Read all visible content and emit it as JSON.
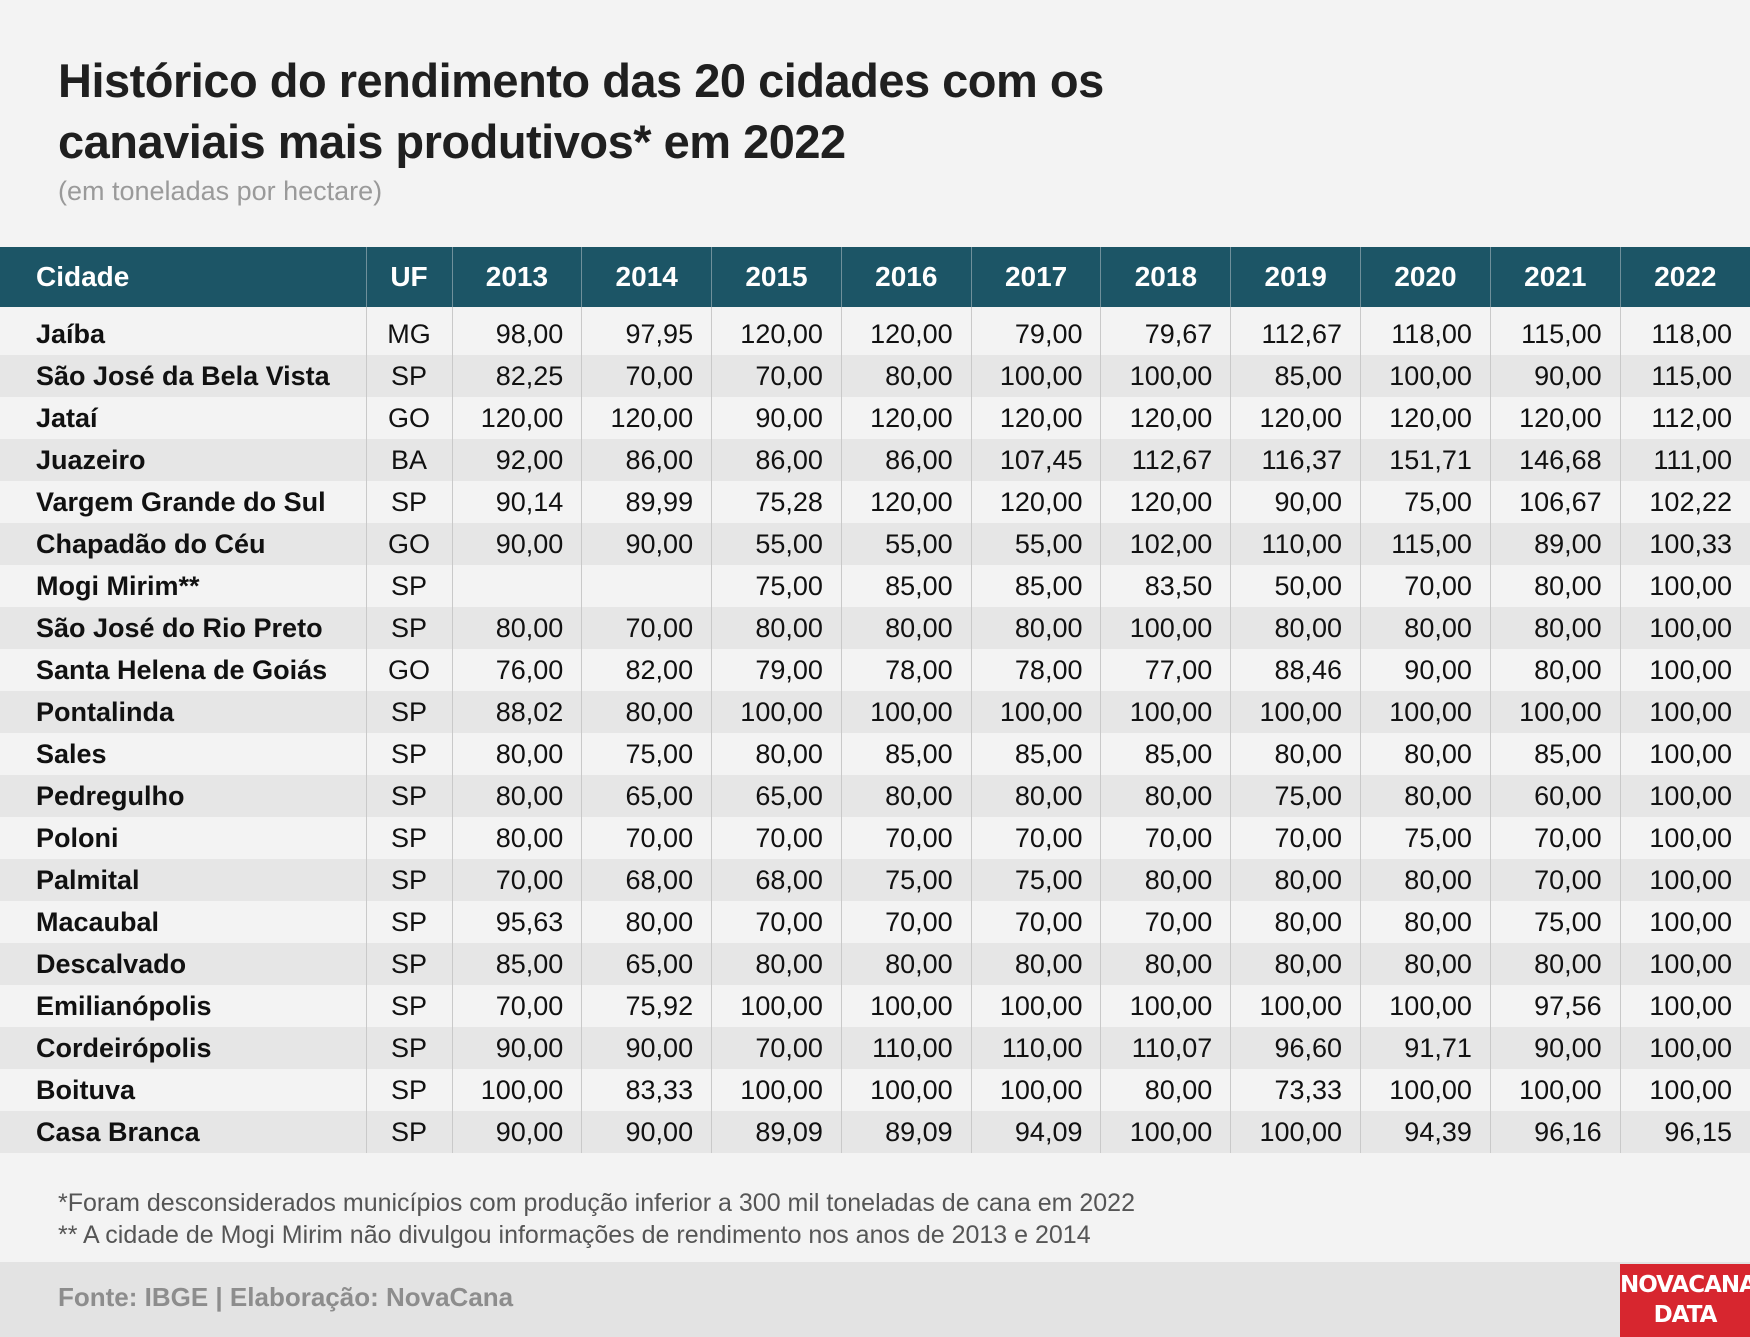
{
  "header": {
    "title_line1": "Histórico do rendimento das 20 cidades com os",
    "title_line2": "canaviais mais produtivos* em 2022",
    "subtitle": "(em toneladas por hectare)"
  },
  "chart_data": {
    "type": "table",
    "columns": [
      "Cidade",
      "UF",
      "2013",
      "2014",
      "2015",
      "2016",
      "2017",
      "2018",
      "2019",
      "2020",
      "2021",
      "2022"
    ],
    "rows": [
      [
        "Jaíba",
        "MG",
        "98,00",
        "97,95",
        "120,00",
        "120,00",
        "79,00",
        "79,67",
        "112,67",
        "118,00",
        "115,00",
        "118,00"
      ],
      [
        "São José da Bela Vista",
        "SP",
        "82,25",
        "70,00",
        "70,00",
        "80,00",
        "100,00",
        "100,00",
        "85,00",
        "100,00",
        "90,00",
        "115,00"
      ],
      [
        "Jataí",
        "GO",
        "120,00",
        "120,00",
        "90,00",
        "120,00",
        "120,00",
        "120,00",
        "120,00",
        "120,00",
        "120,00",
        "112,00"
      ],
      [
        "Juazeiro",
        "BA",
        "92,00",
        "86,00",
        "86,00",
        "86,00",
        "107,45",
        "112,67",
        "116,37",
        "151,71",
        "146,68",
        "111,00"
      ],
      [
        "Vargem Grande do Sul",
        "SP",
        "90,14",
        "89,99",
        "75,28",
        "120,00",
        "120,00",
        "120,00",
        "90,00",
        "75,00",
        "106,67",
        "102,22"
      ],
      [
        "Chapadão do Céu",
        "GO",
        "90,00",
        "90,00",
        "55,00",
        "55,00",
        "55,00",
        "102,00",
        "110,00",
        "115,00",
        "89,00",
        "100,33"
      ],
      [
        "Mogi Mirim**",
        "SP",
        "",
        "",
        "75,00",
        "85,00",
        "85,00",
        "83,50",
        "50,00",
        "70,00",
        "80,00",
        "100,00"
      ],
      [
        "São José do Rio Preto",
        "SP",
        "80,00",
        "70,00",
        "80,00",
        "80,00",
        "80,00",
        "100,00",
        "80,00",
        "80,00",
        "80,00",
        "100,00"
      ],
      [
        "Santa Helena de Goiás",
        "GO",
        "76,00",
        "82,00",
        "79,00",
        "78,00",
        "78,00",
        "77,00",
        "88,46",
        "90,00",
        "80,00",
        "100,00"
      ],
      [
        "Pontalinda",
        "SP",
        "88,02",
        "80,00",
        "100,00",
        "100,00",
        "100,00",
        "100,00",
        "100,00",
        "100,00",
        "100,00",
        "100,00"
      ],
      [
        "Sales",
        "SP",
        "80,00",
        "75,00",
        "80,00",
        "85,00",
        "85,00",
        "85,00",
        "80,00",
        "80,00",
        "85,00",
        "100,00"
      ],
      [
        "Pedregulho",
        "SP",
        "80,00",
        "65,00",
        "65,00",
        "80,00",
        "80,00",
        "80,00",
        "75,00",
        "80,00",
        "60,00",
        "100,00"
      ],
      [
        "Poloni",
        "SP",
        "80,00",
        "70,00",
        "70,00",
        "70,00",
        "70,00",
        "70,00",
        "70,00",
        "75,00",
        "70,00",
        "100,00"
      ],
      [
        "Palmital",
        "SP",
        "70,00",
        "68,00",
        "68,00",
        "75,00",
        "75,00",
        "80,00",
        "80,00",
        "80,00",
        "70,00",
        "100,00"
      ],
      [
        "Macaubal",
        "SP",
        "95,63",
        "80,00",
        "70,00",
        "70,00",
        "70,00",
        "70,00",
        "80,00",
        "80,00",
        "75,00",
        "100,00"
      ],
      [
        "Descalvado",
        "SP",
        "85,00",
        "65,00",
        "80,00",
        "80,00",
        "80,00",
        "80,00",
        "80,00",
        "80,00",
        "80,00",
        "100,00"
      ],
      [
        "Emilianópolis",
        "SP",
        "70,00",
        "75,92",
        "100,00",
        "100,00",
        "100,00",
        "100,00",
        "100,00",
        "100,00",
        "97,56",
        "100,00"
      ],
      [
        "Cordeirópolis",
        "SP",
        "90,00",
        "90,00",
        "70,00",
        "110,00",
        "110,00",
        "110,07",
        "96,60",
        "91,71",
        "90,00",
        "100,00"
      ],
      [
        "Boituva",
        "SP",
        "100,00",
        "83,33",
        "100,00",
        "100,00",
        "100,00",
        "80,00",
        "73,33",
        "100,00",
        "100,00",
        "100,00"
      ],
      [
        "Casa Branca",
        "SP",
        "90,00",
        "90,00",
        "89,09",
        "89,09",
        "94,09",
        "100,00",
        "100,00",
        "94,39",
        "96,16",
        "96,15"
      ]
    ]
  },
  "notes": {
    "note1": "*Foram desconsiderados municípios com produção inferior a 300 mil toneladas de cana em 2022",
    "note2": "** A cidade de Mogi Mirim não divulgou informações de rendimento nos anos de 2013 e 2014"
  },
  "footer": {
    "source": "Fonte: IBGE | Elaboração: NovaCana",
    "logo_line1": "NOVACANA",
    "logo_line2": "DATA"
  },
  "colors": {
    "header_bg": "#1c5566",
    "row_alt_bg": "#e6e6e6",
    "logo_bg": "#d7262f"
  }
}
